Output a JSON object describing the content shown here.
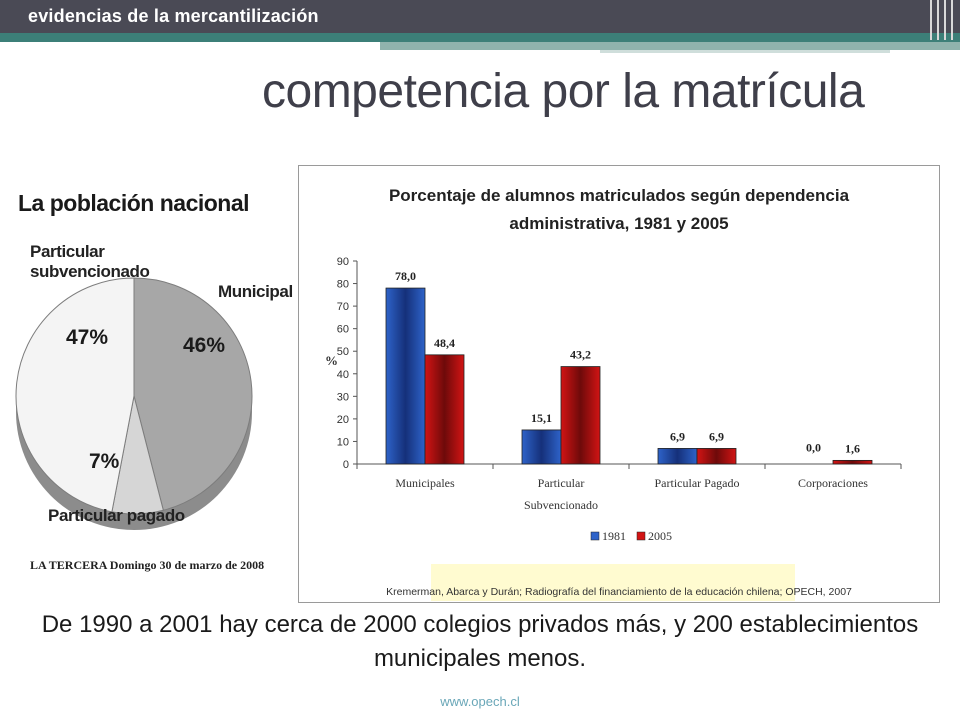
{
  "header": {
    "section_label": "evidencias de la mercantilización"
  },
  "page_title": "competencia por la matrícula",
  "newspaper": {
    "heading": "La población nacional",
    "labels": {
      "subvencionado_l1": "Particular",
      "subvencionado_l2": "subvencionado",
      "municipal": "Municipal",
      "pagado": "Particular pagado"
    },
    "percents": {
      "subvencionado": "47%",
      "municipal": "46%",
      "pagado": "7%"
    },
    "caption": "LA TERCERA  Domingo 30 de marzo de 2008",
    "colors": {
      "subvencionado": "#f4f4f4",
      "municipal": "#a7a7a7",
      "pagado": "#d6d6d6",
      "edge": "#8c8c8c"
    }
  },
  "chart_data": {
    "type": "bar",
    "title_line1": "Porcentaje de alumnos matriculados según dependencia",
    "title_line2": "administrativa, 1981 y 2005",
    "ylabel": "%",
    "ylim": [
      0,
      90
    ],
    "yticks": [
      "0",
      "10",
      "20",
      "30",
      "40",
      "50",
      "60",
      "70",
      "80",
      "90"
    ],
    "categories": [
      {
        "line1": "Municipales",
        "line2": ""
      },
      {
        "line1": "Particular",
        "line2": "Subvencionado"
      },
      {
        "line1": "Particular Pagado",
        "line2": ""
      },
      {
        "line1": "Corporaciones",
        "line2": ""
      }
    ],
    "series": [
      {
        "name": "1981",
        "color": "#2e63c9",
        "dark": "#15307a",
        "values": [
          78.0,
          15.1,
          6.9,
          0.0
        ],
        "labels": [
          "78,0",
          "15,1",
          "6,9",
          "0,0"
        ]
      },
      {
        "name": "2005",
        "color": "#d21414",
        "dark": "#6e0a0a",
        "values": [
          48.4,
          43.2,
          6.9,
          1.6
        ],
        "labels": [
          "48,4",
          "43,2",
          "6,9",
          "1,6"
        ]
      }
    ],
    "legend_position": "bottom",
    "source": "Kremerman, Abarca y Durán; Radiografía del financiamiento de la educación chilena; OPECH, 2007"
  },
  "statement": "De 1990 a 2001 hay cerca de 2000 colegios privados más, y 200 establecimientos municipales menos.",
  "footer": {
    "url": "www.opech.cl"
  }
}
